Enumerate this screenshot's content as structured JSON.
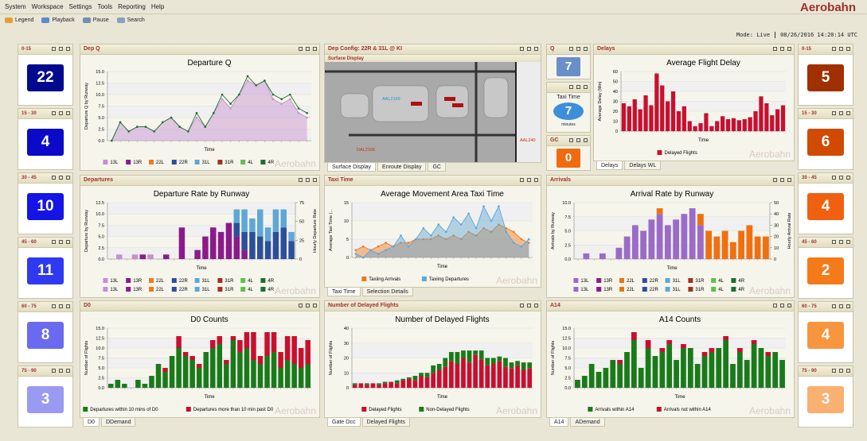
{
  "menu": [
    "System",
    "Workspace",
    "Settings",
    "Tools",
    "Reporting",
    "Help"
  ],
  "brand": "Aerobahn",
  "toolbar": [
    "Legend",
    "Playback",
    "Pause",
    "Search"
  ],
  "status": {
    "mode": "Mode: Live",
    "time": "08/26/2016 14:20:14 UTC"
  },
  "left_tiles": [
    {
      "label": "0-15",
      "value": 22,
      "color": "#000a8c"
    },
    {
      "label": "15 - 30",
      "value": 4,
      "color": "#0a0ac8"
    },
    {
      "label": "30 - 45",
      "value": 10,
      "color": "#1414e6"
    },
    {
      "label": "45 - 60",
      "value": 11,
      "color": "#2f3af0"
    },
    {
      "label": "60 - 75",
      "value": 8,
      "color": "#6a6af0"
    },
    {
      "label": "75 - 90",
      "value": 3,
      "color": "#9a9af2"
    }
  ],
  "right_tiles": [
    {
      "label": "0-15",
      "value": 5,
      "color": "#a03000"
    },
    {
      "label": "15 - 30",
      "value": 6,
      "color": "#d04a00"
    },
    {
      "label": "30 - 45",
      "value": 4,
      "color": "#f06010"
    },
    {
      "label": "45 - 60",
      "value": 2,
      "color": "#f57a1a"
    },
    {
      "label": "60 - 75",
      "value": 4,
      "color": "#f7963e"
    },
    {
      "label": "75 - 90",
      "value": 3,
      "color": "#f9b070"
    }
  ],
  "dep_q": {
    "header": "Dep Q",
    "chart": {
      "type": "area",
      "title": "Departure Q",
      "ylabel": "Departure Q by Runway",
      "xlabel": "Time",
      "ylim": [
        0,
        15
      ],
      "yticks": [
        {
          "value": 0,
          "label": "0.0"
        },
        {
          "value": 2.5,
          "label": "2.5"
        },
        {
          "value": 5,
          "label": "5.0"
        },
        {
          "value": 7.5,
          "label": "7.5"
        },
        {
          "value": 10,
          "label": "10.0"
        },
        {
          "value": 12.5,
          "label": "12.5"
        },
        {
          "value": 15,
          "label": "15.0"
        }
      ],
      "series": [
        {
          "name": "13L",
          "color": "#c58fd0",
          "values": [
            0,
            4,
            2,
            3,
            3,
            2,
            4,
            5,
            3,
            2,
            5,
            3,
            6,
            9,
            7,
            10,
            13,
            12,
            13,
            9,
            8,
            9,
            6,
            5
          ]
        },
        {
          "name": "13R",
          "color": "#8b1a8b"
        },
        {
          "name": "22L",
          "color": "#f07a1a"
        },
        {
          "name": "22R",
          "color": "#2b4f9a"
        },
        {
          "name": "31L",
          "color": "#5ea7d6"
        },
        {
          "name": "31R",
          "color": "#a0321e"
        },
        {
          "name": "4L",
          "color": "#5fbf4f"
        },
        {
          "name": "4R",
          "color": "#1e6e2e",
          "type": "line",
          "values": [
            0,
            4,
            2,
            3,
            3,
            2,
            4,
            5,
            3,
            2,
            6,
            3,
            6,
            10,
            8,
            10,
            14,
            12,
            13,
            10,
            9,
            10,
            7,
            6
          ]
        }
      ]
    }
  },
  "dep_config": {
    "header": "Dep Config: 22R & 31L @ KI",
    "subheader": "Surface Display",
    "flights": [
      "AAL2169",
      "AAL240",
      "DAL2165"
    ],
    "tabs": [
      "Surface Display",
      "Enroute Display",
      "GC"
    ]
  },
  "q": {
    "header": "Q",
    "value": 7
  },
  "taxi_small": {
    "label": "Taxi Time",
    "value": 7,
    "unit": "minutes"
  },
  "gc": {
    "header": "GC",
    "value": 0
  },
  "delays": {
    "header": "Delays",
    "tabs": [
      "Delays",
      "Delays WL"
    ],
    "chart": {
      "type": "stacked_bar",
      "title": "Average Flight Delay",
      "ylabel": "Average Delay (Min)",
      "xlabel": "Time",
      "ylim": [
        0,
        60
      ],
      "yticks": [
        0,
        10,
        20,
        30,
        40,
        50,
        60
      ],
      "series": [
        {
          "name": "Delayed Flights",
          "color": "#c8102e",
          "values": [
            28,
            25,
            32,
            22,
            36,
            26,
            58,
            46,
            30,
            40,
            20,
            25,
            10,
            5,
            8,
            18,
            5,
            10,
            15,
            12,
            13,
            11,
            12,
            14,
            20,
            35,
            28,
            16,
            22,
            26
          ]
        }
      ]
    }
  },
  "departures": {
    "header": "Departures",
    "chart": {
      "type": "stacked_bar",
      "title": "Departure Rate by Runway",
      "ylabel": "Departure by Runway",
      "xlabel": "Time",
      "y2label": "Hourly Departure Rate",
      "legend_repeat": 2,
      "ylim": [
        0,
        12.5
      ],
      "yticks": [
        {
          "value": 0,
          "label": "0.0"
        },
        {
          "value": 2.5,
          "label": "2.5"
        },
        {
          "value": 5,
          "label": "5.0"
        },
        {
          "value": 7.5,
          "label": "7.5"
        },
        {
          "value": 10,
          "label": "10.0"
        },
        {
          "value": 12.5,
          "label": "12.5"
        }
      ],
      "y2lim": [
        0,
        75
      ],
      "y2ticks": [
        0,
        25,
        50,
        75
      ],
      "series": [
        {
          "name": "13L",
          "color": "#c58fd0",
          "values": [
            0,
            1,
            0,
            1,
            0,
            1,
            0,
            0,
            0,
            0,
            0,
            0,
            0,
            0,
            0,
            0,
            0,
            0,
            0,
            0,
            0,
            0,
            0,
            0
          ]
        },
        {
          "name": "13R",
          "color": "#8b1a8b",
          "values": [
            0,
            0,
            0,
            0,
            1,
            0,
            0,
            1,
            0,
            7,
            0,
            2,
            5,
            7,
            6,
            8,
            5,
            2,
            0,
            0,
            0,
            0,
            0,
            0
          ]
        },
        {
          "name": "22L",
          "color": "#f07a1a"
        },
        {
          "name": "22R",
          "color": "#2b4f9a",
          "values": [
            0,
            0,
            0,
            0,
            0,
            0,
            0,
            0,
            0,
            0,
            0,
            0,
            0,
            0,
            0,
            0,
            3,
            4,
            6,
            5,
            4,
            6,
            7,
            4
          ]
        },
        {
          "name": "31L",
          "color": "#5ea7d6",
          "values": [
            0,
            0,
            0,
            0,
            0,
            0,
            0,
            0,
            0,
            0,
            0,
            0,
            0,
            0,
            0,
            0,
            3,
            5,
            3,
            6,
            3,
            5,
            4,
            2
          ]
        },
        {
          "name": "31R",
          "color": "#a0321e"
        },
        {
          "name": "4L",
          "color": "#5fbf4f"
        },
        {
          "name": "4R",
          "color": "#1e6e2e"
        }
      ]
    }
  },
  "taxi_time": {
    "header": "Taxi Time",
    "tabs": [
      "Taxi Time",
      "Selection Details"
    ],
    "chart": {
      "type": "area",
      "title": "Average Movement Area Taxi Time",
      "ylabel": "Average Taxi Time (...",
      "xlabel": "Time",
      "ylim": [
        0,
        15
      ],
      "yticks": [
        0,
        5,
        10,
        15
      ],
      "series": [
        {
          "name": "Taxiing Arrivals",
          "color": "#f07a1a",
          "values": [
            2,
            3,
            2,
            3,
            4,
            3,
            4,
            4,
            5,
            5,
            5,
            6,
            5,
            6,
            5,
            7,
            6,
            8,
            7,
            9,
            8,
            7,
            5,
            4
          ]
        },
        {
          "name": "Taxiing Departures",
          "color": "#5ea7d6",
          "values": [
            1,
            0,
            2,
            1,
            2,
            3,
            6,
            3,
            5,
            8,
            6,
            9,
            7,
            11,
            9,
            12,
            8,
            14,
            10,
            14,
            7,
            4,
            3,
            5
          ]
        }
      ]
    }
  },
  "arrivals": {
    "header": "Arrivals",
    "chart": {
      "type": "stacked_bar",
      "title": "Arrival Rate by Runway",
      "ylabel": "Arrivals by Runway",
      "xlabel": "Time",
      "y2label": "Hourly Arrival Rate",
      "legend_repeat": 2,
      "ylim": [
        0,
        10
      ],
      "yticks": [
        {
          "value": 0,
          "label": "0.0"
        },
        {
          "value": 2.5,
          "label": "2.5"
        },
        {
          "value": 5,
          "label": "5.0"
        },
        {
          "value": 7.5,
          "label": "7.5"
        },
        {
          "value": 10,
          "label": "10.0"
        }
      ],
      "y2lim": [
        0,
        50
      ],
      "y2ticks": [
        0,
        10,
        20,
        30,
        40,
        50
      ],
      "series": [
        {
          "name": "13L",
          "color": "#9b6bc8",
          "values": [
            0,
            1,
            0,
            1,
            0,
            2,
            4,
            6,
            5,
            7,
            8,
            6,
            7,
            8,
            9,
            6,
            0,
            0,
            0,
            0,
            0,
            0,
            0,
            0
          ]
        },
        {
          "name": "13R",
          "color": "#8b1a8b"
        },
        {
          "name": "22L",
          "color": "#f07010",
          "values": [
            0,
            0,
            0,
            0,
            0,
            0,
            0,
            0,
            0,
            0,
            1,
            0,
            0,
            0,
            0,
            2,
            5,
            4,
            5,
            3,
            5,
            6,
            4,
            4
          ]
        },
        {
          "name": "22R",
          "color": "#2b4f9a"
        },
        {
          "name": "31L",
          "color": "#5ea7d6"
        },
        {
          "name": "31R",
          "color": "#a0321e"
        },
        {
          "name": "4L",
          "color": "#5fbf4f"
        },
        {
          "name": "4R",
          "color": "#1e6e2e"
        }
      ]
    }
  },
  "d0": {
    "header": "D0",
    "tabs": [
      "D0",
      "DDemand"
    ],
    "chart": {
      "type": "stacked_bar",
      "title": "D0 Counts",
      "ylabel": "Number of Flights",
      "xlabel": "Time",
      "ylim": [
        0,
        15
      ],
      "yticks": [
        {
          "value": 0,
          "label": "0.0"
        },
        {
          "value": 2.5,
          "label": "2.5"
        },
        {
          "value": 5,
          "label": "5.0"
        },
        {
          "value": 7.5,
          "label": "7.5"
        },
        {
          "value": 10,
          "label": "10.0"
        },
        {
          "value": 12.5,
          "label": "12.5"
        },
        {
          "value": 15,
          "label": "15.0"
        }
      ],
      "series": [
        {
          "name": "Departures within 10 mins of D0",
          "color": "#1a7a1a",
          "values": [
            1,
            2,
            1,
            0,
            2,
            1,
            3,
            6,
            4,
            8,
            10,
            8,
            7,
            5,
            9,
            10,
            11,
            6,
            12,
            9,
            10,
            7,
            6,
            8,
            9,
            5,
            7,
            6,
            5,
            6
          ]
        },
        {
          "name": "Departures more than 10 min past D0",
          "color": "#c8102e",
          "values": [
            0,
            0,
            0,
            0,
            0,
            0,
            0,
            0,
            1,
            0,
            3,
            1,
            1,
            1,
            0,
            2,
            2,
            1,
            1,
            3,
            4,
            7,
            2,
            6,
            5,
            4,
            6,
            7,
            5,
            6
          ]
        }
      ]
    }
  },
  "delayed": {
    "header": "Number of Delayed Flights",
    "tabs": [
      "Gate Occ",
      "Delayed Flights"
    ],
    "chart": {
      "type": "stacked_bar",
      "title": "Number of Delayed Flights",
      "ylabel": "Number of Flights",
      "xlabel": "Time",
      "ylim": [
        0,
        40
      ],
      "yticks": [
        0,
        10,
        20,
        30,
        40
      ],
      "series": [
        {
          "name": "Delayed Flights",
          "color": "#c8102e",
          "values": [
            2,
            3,
            2,
            3,
            2,
            3,
            4,
            3,
            5,
            6,
            5,
            8,
            7,
            10,
            12,
            14,
            18,
            16,
            20,
            17,
            22,
            19,
            15,
            16,
            18,
            14,
            13,
            15,
            12,
            13
          ]
        },
        {
          "name": "Non-Delayed Flights",
          "color": "#1a7a1a",
          "values": [
            1,
            0,
            1,
            0,
            1,
            1,
            0,
            2,
            1,
            1,
            3,
            2,
            3,
            5,
            4,
            6,
            6,
            8,
            5,
            8,
            3,
            6,
            5,
            4,
            3,
            6,
            4,
            3,
            5,
            4
          ]
        }
      ]
    }
  },
  "a14": {
    "header": "A14",
    "tabs": [
      "A14",
      "ADemand"
    ],
    "chart": {
      "type": "stacked_bar",
      "title": "A14 Counts",
      "ylabel": "Number of Flights",
      "xlabel": "Time",
      "ylim": [
        0,
        15
      ],
      "yticks": [
        {
          "value": 0,
          "label": "0.0"
        },
        {
          "value": 2.5,
          "label": "2.5"
        },
        {
          "value": 5,
          "label": "5.0"
        },
        {
          "value": 7.5,
          "label": "7.5"
        },
        {
          "value": 10,
          "label": "10.0"
        },
        {
          "value": 12.5,
          "label": "12.5"
        },
        {
          "value": 15,
          "label": "15.0"
        }
      ],
      "series": [
        {
          "name": "Arrivals within A14",
          "color": "#1a7a1a",
          "values": [
            2,
            3,
            6,
            4,
            5,
            7,
            6,
            9,
            12,
            5,
            10,
            8,
            9,
            11,
            7,
            10,
            10,
            6,
            8,
            9,
            10,
            12,
            6,
            9,
            7,
            11,
            10,
            8,
            9,
            7
          ]
        },
        {
          "name": "Arrivals not within A14",
          "color": "#c8102e",
          "values": [
            0,
            0,
            0,
            0,
            0,
            0,
            1,
            0,
            2,
            0,
            2,
            0,
            1,
            1,
            0,
            1,
            0,
            0,
            1,
            1,
            0,
            1,
            0,
            1,
            0,
            1,
            0,
            1,
            0,
            0
          ]
        }
      ]
    }
  }
}
